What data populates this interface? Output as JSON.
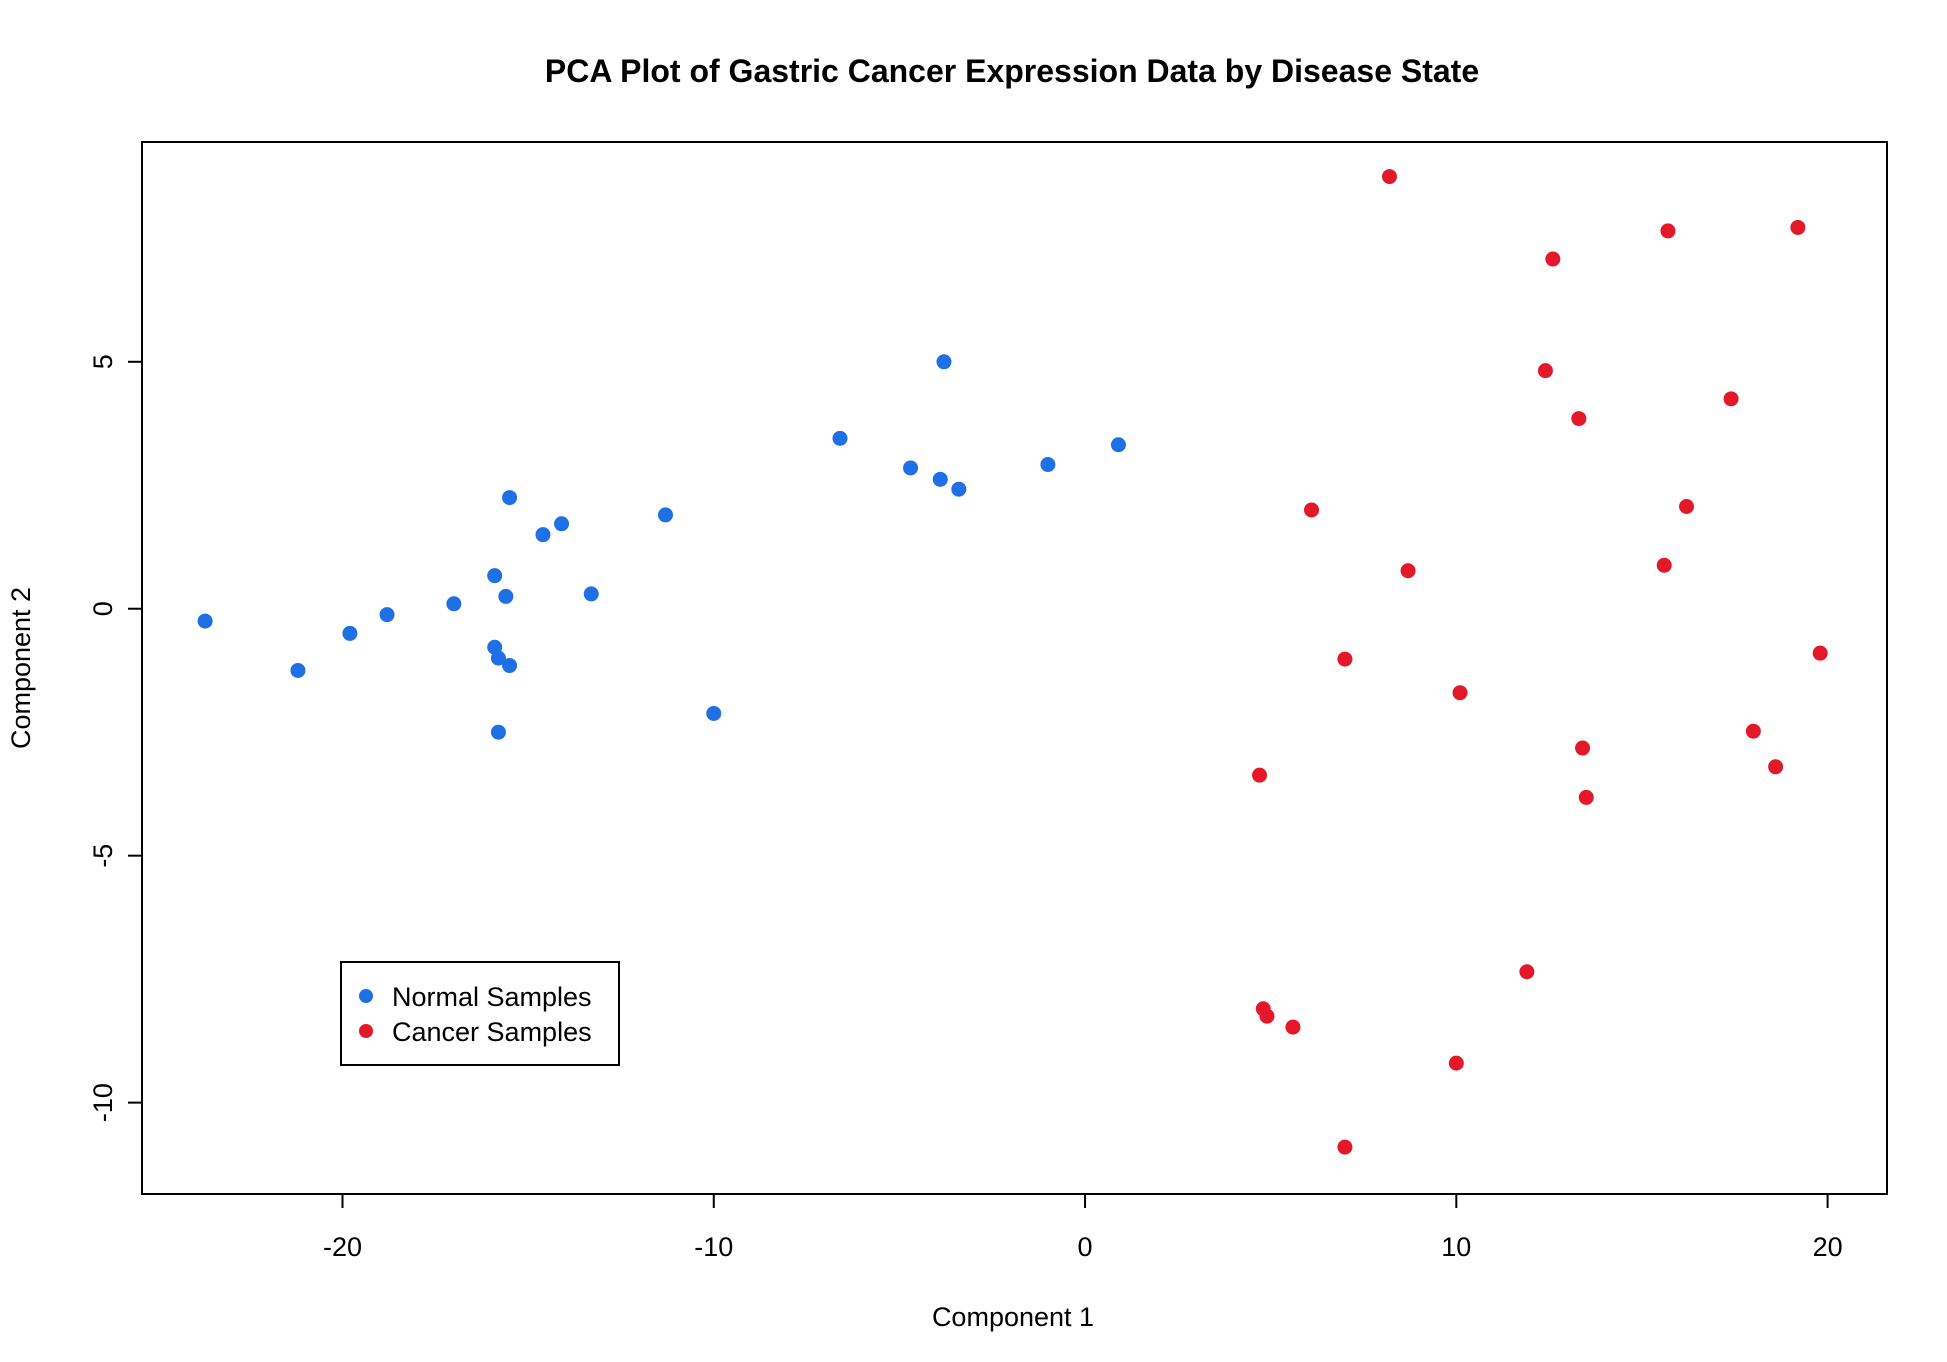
{
  "chart_data": {
    "type": "scatter",
    "title": "PCA Plot of Gastric Cancer Expression Data by Disease State",
    "xlabel": "Component 1",
    "ylabel": "Component 2",
    "xlim": [
      -25.4,
      21.6
    ],
    "ylim": [
      -11.85,
      9.45
    ],
    "xticks": [
      -20,
      -10,
      0,
      10,
      20
    ],
    "yticks": [
      -10,
      -5,
      0,
      5
    ],
    "grid": false,
    "legend_position": "bottom-left",
    "series": [
      {
        "name": "Normal Samples",
        "color": "#1f6fe5",
        "points": [
          [
            -23.7,
            -0.25
          ],
          [
            -21.2,
            -1.25
          ],
          [
            -19.8,
            -0.5
          ],
          [
            -18.8,
            -0.12
          ],
          [
            -17.0,
            0.1
          ],
          [
            -15.9,
            0.67
          ],
          [
            -15.9,
            -0.78
          ],
          [
            -15.8,
            -1.0
          ],
          [
            -15.8,
            -2.5
          ],
          [
            -15.6,
            0.25
          ],
          [
            -15.5,
            2.25
          ],
          [
            -15.5,
            -1.15
          ],
          [
            -14.6,
            1.5
          ],
          [
            -14.1,
            1.72
          ],
          [
            -13.3,
            0.3
          ],
          [
            -11.3,
            1.9
          ],
          [
            -10.0,
            -2.12
          ],
          [
            -6.6,
            3.45
          ],
          [
            -4.7,
            2.85
          ],
          [
            -3.9,
            2.62
          ],
          [
            -3.8,
            5.0
          ],
          [
            -3.4,
            2.42
          ],
          [
            -1.0,
            2.92
          ],
          [
            0.9,
            3.32
          ]
        ]
      },
      {
        "name": "Cancer Samples",
        "color": "#e3192a",
        "points": [
          [
            8.2,
            8.75
          ],
          [
            15.7,
            7.65
          ],
          [
            19.2,
            7.72
          ],
          [
            12.6,
            7.08
          ],
          [
            12.4,
            4.82
          ],
          [
            17.4,
            4.25
          ],
          [
            13.3,
            3.85
          ],
          [
            6.1,
            2.0
          ],
          [
            16.2,
            2.07
          ],
          [
            8.7,
            0.77
          ],
          [
            15.6,
            0.88
          ],
          [
            19.8,
            -0.9
          ],
          [
            7.0,
            -1.02
          ],
          [
            10.1,
            -1.7
          ],
          [
            18.0,
            -2.48
          ],
          [
            13.4,
            -2.82
          ],
          [
            18.6,
            -3.2
          ],
          [
            4.7,
            -3.37
          ],
          [
            13.5,
            -3.82
          ],
          [
            11.9,
            -7.35
          ],
          [
            4.8,
            -8.1
          ],
          [
            4.9,
            -8.25
          ],
          [
            5.6,
            -8.47
          ],
          [
            10.0,
            -9.2
          ],
          [
            7.0,
            -10.9
          ]
        ]
      }
    ]
  }
}
